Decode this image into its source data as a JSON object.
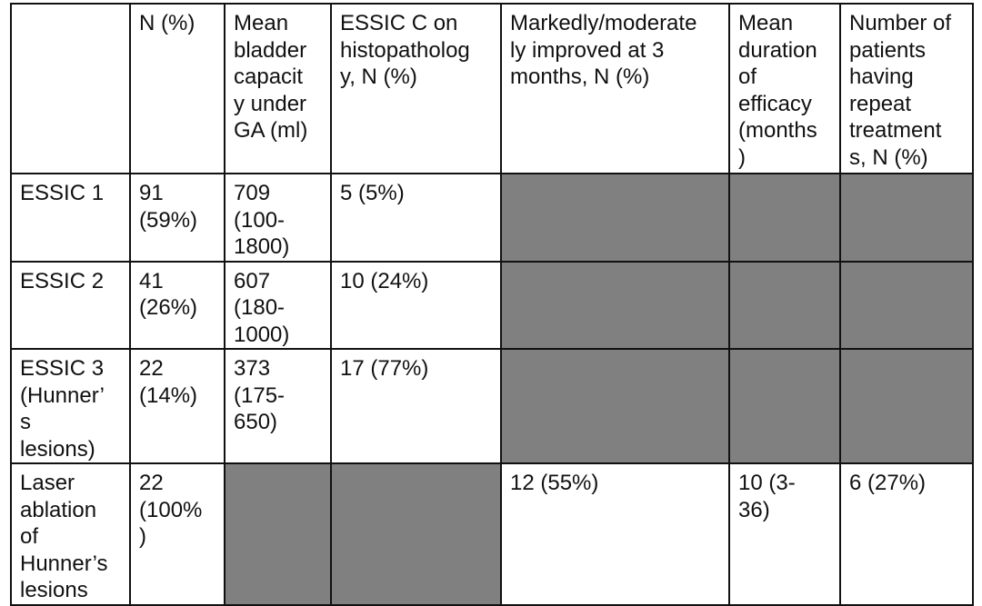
{
  "table": {
    "headers": [
      "",
      "N (%)",
      "Mean\nbladder\ncapacit\ny under\nGA (ml)",
      "ESSIC C on\nhistopatholog\ny, N (%)",
      "Markedly/moderate\nly improved at 3\nmonths, N (%)",
      "Mean\nduration\nof\nefficacy\n(months\n)",
      "Number of\npatients\nhaving\nrepeat\ntreatment\ns, N (%)"
    ],
    "rows": [
      [
        "ESSIC 1",
        "91\n(59%)",
        "709\n(100-\n1800)",
        "5 (5%)",
        "",
        "",
        ""
      ],
      [
        "ESSIC 2",
        "41\n(26%)",
        "607\n(180-\n1000)",
        "10 (24%)",
        "",
        "",
        ""
      ],
      [
        "ESSIC 3\n(Hunner’\ns\nlesions)",
        "22\n(14%)",
        "373\n(175-\n650)",
        "17 (77%)",
        "",
        "",
        ""
      ],
      [
        "Laser\nablation\nof\nHunner’s\nlesions",
        "22\n(100%\n)",
        "",
        "",
        "12 (55%)",
        "10 (3-\n36)",
        "6 (27%)"
      ]
    ],
    "shade_color": "#808080"
  }
}
